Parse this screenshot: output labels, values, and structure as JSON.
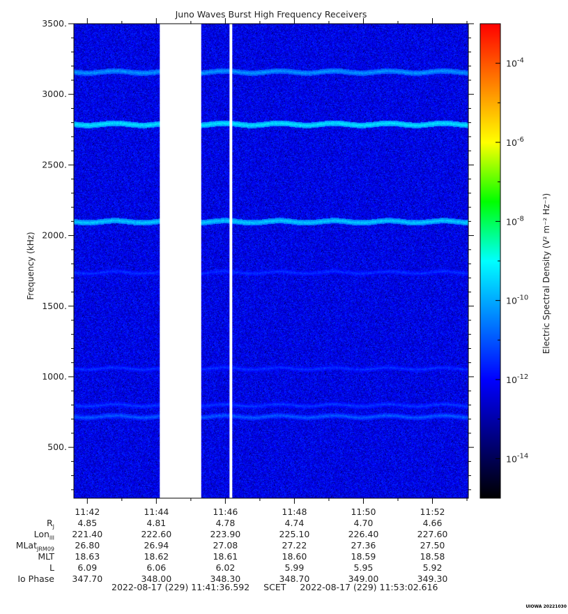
{
  "chart_data": {
    "type": "heatmap",
    "title": "Juno Waves Burst High Frequency Receivers",
    "ylabel": "Frequency (kHz)",
    "colorbar_label": "Electric Spectral Density (V² m⁻² Hz⁻¹)",
    "y_ticks": [
      "3500.",
      "3000.",
      "2500.",
      "2000.",
      "1500.",
      "1000.",
      "500."
    ],
    "y_tick_values": [
      3500,
      3000,
      2500,
      2000,
      1500,
      1000,
      500
    ],
    "ylim": [
      140,
      3500
    ],
    "x_ticks": [
      "11:42",
      "11:44",
      "11:46",
      "11:48",
      "11:50",
      "11:52"
    ],
    "x_tick_minutes": [
      42,
      44,
      46,
      48,
      50,
      52
    ],
    "xlim_minutes": [
      41.61,
      53.04
    ],
    "colorbar_ticks": [
      "-4",
      "-6",
      "-8",
      "-10",
      "-12",
      "-14"
    ],
    "colorbar_tick_exponents": [
      -4,
      -6,
      -8,
      -10,
      -12,
      -14
    ],
    "colorbar_range_exponents": [
      -15.0,
      -3.0
    ],
    "colorbar_colors": [
      "#000000",
      "#00007f",
      "#0000ff",
      "#007fff",
      "#00ffff",
      "#00ff00",
      "#ffff00",
      "#ff7f00",
      "#ff0000"
    ],
    "background_level_exponent": -12.2,
    "data_gaps_minutes": [
      [
        44.1,
        45.3
      ],
      [
        46.12,
        46.2
      ]
    ],
    "emission_bands": [
      {
        "frequency_khz": 3160,
        "level_exponent": -10.2
      },
      {
        "frequency_khz": 2790,
        "level_exponent": -9.3
      },
      {
        "frequency_khz": 2100,
        "level_exponent": -9.6
      },
      {
        "frequency_khz": 1740,
        "level_exponent": -11.4
      },
      {
        "frequency_khz": 1060,
        "level_exponent": -11.4
      },
      {
        "frequency_khz": 800,
        "level_exponent": -11.3
      },
      {
        "frequency_khz": 720,
        "level_exponent": -10.9
      }
    ]
  },
  "ephemeris": {
    "rows": [
      {
        "label": "R",
        "sub": "J",
        "values": [
          "4.85",
          "4.81",
          "4.78",
          "4.74",
          "4.70",
          "4.66"
        ]
      },
      {
        "label": "Lon",
        "sub": "III",
        "values": [
          "221.40",
          "222.60",
          "223.90",
          "225.10",
          "226.40",
          "227.60"
        ]
      },
      {
        "label": "MLat",
        "sub": "JRM09",
        "values": [
          "26.80",
          "26.94",
          "27.08",
          "27.22",
          "27.36",
          "27.50"
        ]
      },
      {
        "label": "MLT",
        "sub": "",
        "values": [
          "18.63",
          "18.62",
          "18.61",
          "18.60",
          "18.59",
          "18.58"
        ]
      },
      {
        "label": "L",
        "sub": "",
        "values": [
          "6.09",
          "6.06",
          "6.02",
          "5.99",
          "5.95",
          "5.92"
        ]
      },
      {
        "label": "Io Phase",
        "sub": "",
        "values": [
          "347.70",
          "348.00",
          "348.30",
          "348.70",
          "349.00",
          "349.30"
        ]
      }
    ]
  },
  "footer": {
    "start": "2022-08-17 (229) 11:41:36.592",
    "scet": "SCET",
    "end": "2022-08-17 (229) 11:53:02.616",
    "credit": "UIOWA 20221030"
  }
}
